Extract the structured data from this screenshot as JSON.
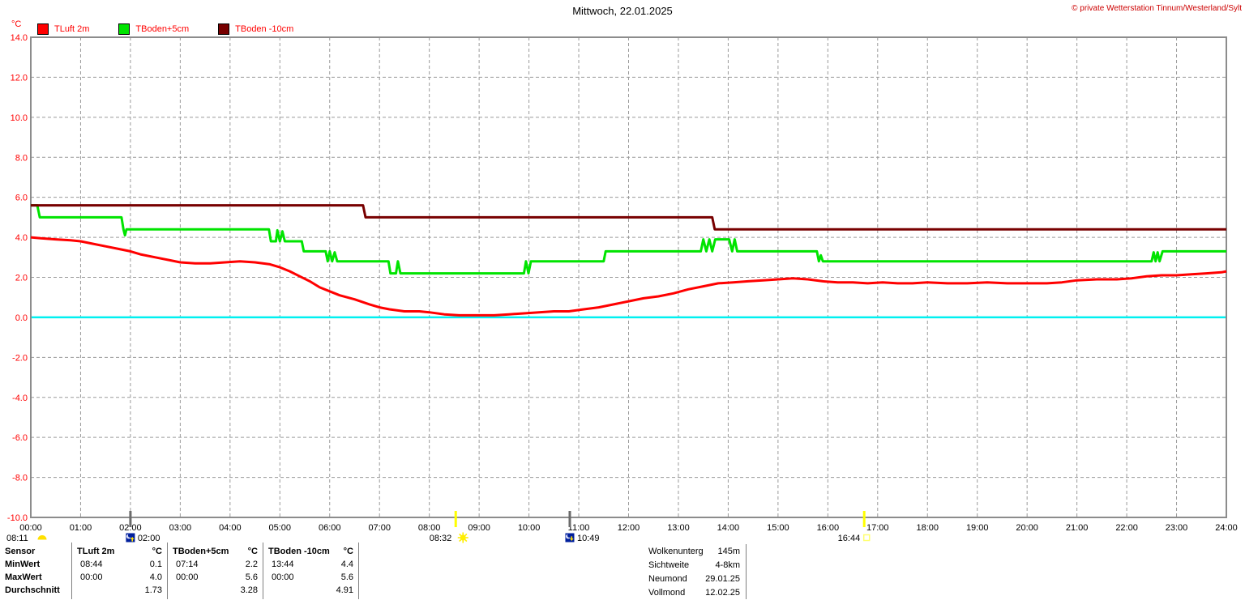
{
  "header": {
    "title": "Mittwoch, 22.01.2025",
    "copyright": "© private Wetterstation Tinnum/Westerland/Sylt"
  },
  "chart_data": {
    "type": "line",
    "title": "Mittwoch, 22.01.2025",
    "ylabel": "°C",
    "ylim": [
      -10,
      14
    ],
    "ytick_step": 2,
    "xlim_hours": [
      0,
      24
    ],
    "xtick_step_hours": 1,
    "grid": true,
    "grid_color": "#9a9a9a",
    "axis_color": "#8c8c8c",
    "y_label_color": "#ff0000",
    "x_label_color": "#000000",
    "zero_line_color": "#00f0f0",
    "series": [
      {
        "name": "TLuft 2m",
        "color": "#ff0000",
        "points": [
          [
            0,
            4.0
          ],
          [
            0.2,
            3.95
          ],
          [
            0.5,
            3.9
          ],
          [
            0.8,
            3.85
          ],
          [
            1.0,
            3.8
          ],
          [
            1.2,
            3.7
          ],
          [
            1.5,
            3.55
          ],
          [
            1.8,
            3.4
          ],
          [
            2.0,
            3.3
          ],
          [
            2.2,
            3.15
          ],
          [
            2.5,
            3.0
          ],
          [
            2.8,
            2.85
          ],
          [
            3.0,
            2.75
          ],
          [
            3.3,
            2.7
          ],
          [
            3.6,
            2.7
          ],
          [
            3.9,
            2.75
          ],
          [
            4.2,
            2.8
          ],
          [
            4.5,
            2.75
          ],
          [
            4.8,
            2.65
          ],
          [
            5.0,
            2.5
          ],
          [
            5.2,
            2.3
          ],
          [
            5.4,
            2.05
          ],
          [
            5.6,
            1.8
          ],
          [
            5.8,
            1.5
          ],
          [
            6.0,
            1.3
          ],
          [
            6.2,
            1.1
          ],
          [
            6.5,
            0.9
          ],
          [
            6.8,
            0.65
          ],
          [
            7.0,
            0.5
          ],
          [
            7.2,
            0.4
          ],
          [
            7.5,
            0.3
          ],
          [
            7.8,
            0.3
          ],
          [
            8.0,
            0.25
          ],
          [
            8.3,
            0.15
          ],
          [
            8.6,
            0.1
          ],
          [
            9.0,
            0.1
          ],
          [
            9.3,
            0.1
          ],
          [
            9.6,
            0.15
          ],
          [
            9.9,
            0.2
          ],
          [
            10.2,
            0.25
          ],
          [
            10.5,
            0.3
          ],
          [
            10.8,
            0.3
          ],
          [
            11.1,
            0.4
          ],
          [
            11.4,
            0.5
          ],
          [
            11.7,
            0.65
          ],
          [
            12.0,
            0.8
          ],
          [
            12.3,
            0.95
          ],
          [
            12.6,
            1.05
          ],
          [
            12.9,
            1.2
          ],
          [
            13.2,
            1.4
          ],
          [
            13.5,
            1.55
          ],
          [
            13.8,
            1.7
          ],
          [
            14.1,
            1.75
          ],
          [
            14.4,
            1.8
          ],
          [
            14.7,
            1.85
          ],
          [
            15.0,
            1.9
          ],
          [
            15.3,
            1.95
          ],
          [
            15.6,
            1.9
          ],
          [
            15.9,
            1.8
          ],
          [
            16.2,
            1.75
          ],
          [
            16.5,
            1.75
          ],
          [
            16.8,
            1.7
          ],
          [
            17.1,
            1.75
          ],
          [
            17.4,
            1.7
          ],
          [
            17.7,
            1.7
          ],
          [
            18.0,
            1.75
          ],
          [
            18.4,
            1.7
          ],
          [
            18.8,
            1.7
          ],
          [
            19.2,
            1.75
          ],
          [
            19.6,
            1.7
          ],
          [
            20.0,
            1.7
          ],
          [
            20.4,
            1.7
          ],
          [
            20.7,
            1.75
          ],
          [
            21.0,
            1.85
          ],
          [
            21.4,
            1.9
          ],
          [
            21.8,
            1.9
          ],
          [
            22.1,
            1.95
          ],
          [
            22.4,
            2.05
          ],
          [
            22.7,
            2.1
          ],
          [
            23.0,
            2.1
          ],
          [
            23.3,
            2.15
          ],
          [
            23.6,
            2.2
          ],
          [
            23.9,
            2.25
          ],
          [
            24,
            2.3
          ]
        ]
      },
      {
        "name": "TBoden+5cm",
        "color": "#00e400",
        "points": [
          [
            0,
            5.6
          ],
          [
            0.13,
            5.6
          ],
          [
            0.18,
            5.0
          ],
          [
            1.82,
            5.0
          ],
          [
            1.86,
            4.4
          ],
          [
            1.89,
            4.1
          ],
          [
            1.92,
            4.4
          ],
          [
            4.78,
            4.4
          ],
          [
            4.82,
            3.8
          ],
          [
            4.92,
            3.8
          ],
          [
            4.95,
            4.35
          ],
          [
            5.0,
            3.8
          ],
          [
            5.05,
            4.3
          ],
          [
            5.1,
            3.8
          ],
          [
            5.44,
            3.8
          ],
          [
            5.48,
            3.3
          ],
          [
            5.92,
            3.3
          ],
          [
            5.96,
            2.8
          ],
          [
            6.0,
            3.3
          ],
          [
            6.05,
            2.8
          ],
          [
            6.1,
            3.25
          ],
          [
            6.15,
            2.8
          ],
          [
            7.18,
            2.8
          ],
          [
            7.22,
            2.2
          ],
          [
            7.33,
            2.2
          ],
          [
            7.37,
            2.8
          ],
          [
            7.42,
            2.2
          ],
          [
            9.9,
            2.2
          ],
          [
            9.94,
            2.8
          ],
          [
            9.99,
            2.2
          ],
          [
            10.04,
            2.8
          ],
          [
            11.5,
            2.8
          ],
          [
            11.54,
            3.3
          ],
          [
            13.45,
            3.3
          ],
          [
            13.5,
            3.9
          ],
          [
            13.56,
            3.3
          ],
          [
            13.62,
            3.9
          ],
          [
            13.68,
            3.3
          ],
          [
            13.74,
            3.9
          ],
          [
            14.02,
            3.9
          ],
          [
            14.08,
            3.3
          ],
          [
            14.13,
            3.9
          ],
          [
            14.18,
            3.3
          ],
          [
            15.78,
            3.3
          ],
          [
            15.82,
            2.8
          ],
          [
            15.86,
            3.1
          ],
          [
            15.9,
            2.8
          ],
          [
            22.5,
            2.8
          ],
          [
            22.54,
            3.25
          ],
          [
            22.58,
            2.8
          ],
          [
            22.62,
            3.25
          ],
          [
            22.66,
            2.8
          ],
          [
            22.72,
            3.3
          ],
          [
            24,
            3.3
          ]
        ]
      },
      {
        "name": "TBoden -10cm",
        "color": "#780000",
        "points": [
          [
            0,
            5.6
          ],
          [
            6.67,
            5.6
          ],
          [
            6.72,
            5.0
          ],
          [
            13.68,
            5.0
          ],
          [
            13.73,
            4.4
          ],
          [
            24,
            4.4
          ]
        ]
      }
    ],
    "events": [
      {
        "type": "sunrise",
        "time": "08:11",
        "anchor": "left",
        "icon_side": "right"
      },
      {
        "type": "moonrise",
        "time": "02:00",
        "t": 2.0,
        "anchor": "time",
        "icon_side": "left",
        "tick_color": "#6b6b6b"
      },
      {
        "type": "sun",
        "time": "08:32",
        "t": 8.53,
        "anchor": "time",
        "icon_side": "right",
        "tick_color": "#ffff00"
      },
      {
        "type": "moonset",
        "time": "10:49",
        "t": 10.82,
        "anchor": "time",
        "icon_side": "left",
        "tick_color": "#6b6b6b"
      },
      {
        "type": "sunset",
        "time": "16:44",
        "t": 16.73,
        "anchor": "time",
        "icon_side": "right",
        "tick_color": "#ffff00"
      }
    ]
  },
  "stats_table": {
    "corner_label": "Sensor",
    "row_labels": [
      "MinWert",
      "MaxWert",
      "Durchschnitt"
    ],
    "columns": [
      {
        "name": "TLuft 2m",
        "unit": "°C",
        "min_time": "08:44",
        "min_value": "0.1",
        "max_time": "00:00",
        "max_value": "4.0",
        "avg": "1.73"
      },
      {
        "name": "TBoden+5cm",
        "unit": "°C",
        "min_time": "07:14",
        "min_value": "2.2",
        "max_time": "00:00",
        "max_value": "5.6",
        "avg": "3.28"
      },
      {
        "name": "TBoden -10cm",
        "unit": "°C",
        "min_time": "13:44",
        "min_value": "4.4",
        "max_time": "00:00",
        "max_value": "5.6",
        "avg": "4.91"
      }
    ]
  },
  "info_panel": {
    "rows": [
      {
        "label": "Wolkenunterg",
        "value": "145m"
      },
      {
        "label": "Sichtweite",
        "value": "4-8km"
      },
      {
        "label": "Neumond",
        "value": "29.01.25"
      },
      {
        "label": "Vollmond",
        "value": "12.02.25"
      }
    ]
  }
}
